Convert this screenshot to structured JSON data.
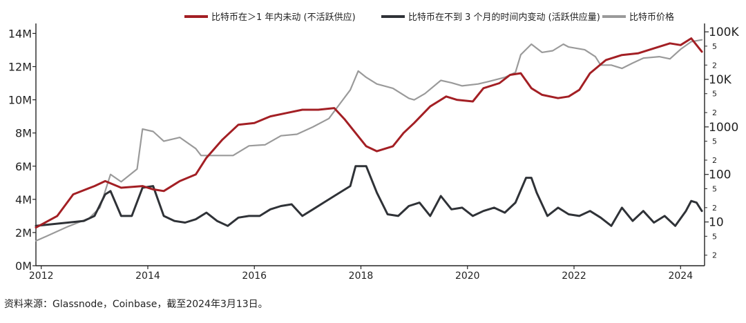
{
  "chart_data": {
    "type": "line",
    "source": "资料来源：Glassnode，Coinbase，截至2024年3月13日。",
    "legend_position": "top",
    "grid": false,
    "x_ticks": [
      "2012",
      "2014",
      "2016",
      "2018",
      "2020",
      "2022",
      "2024"
    ],
    "x_range": [
      2011.9,
      2024.45
    ],
    "y_left": {
      "ticks": [
        0,
        2,
        4,
        6,
        8,
        10,
        12,
        14
      ],
      "tick_labels": [
        "0M",
        "2M",
        "4M",
        "6M",
        "8M",
        "10M",
        "12M",
        "14M"
      ],
      "range": [
        0,
        14.6
      ],
      "unit": "M"
    },
    "y_right": {
      "scale": "log",
      "range": [
        1.2,
        150000
      ],
      "major_ticks": [
        10,
        100,
        1000,
        10000,
        100000
      ],
      "major_labels": [
        "10",
        "100",
        "1000",
        "10K",
        "100K"
      ],
      "minor_ticks": [
        2,
        5,
        20,
        50,
        200,
        500,
        2000,
        5000,
        20000,
        50000
      ],
      "minor_labels": [
        "2",
        "5",
        "2",
        "5",
        "2",
        "5",
        "2",
        "5",
        "2",
        "5"
      ]
    },
    "series": [
      {
        "name": "比特币在＞1 年内未动 (不活跃供应)",
        "axis": "left",
        "color": "#a31f24",
        "x": [
          2011.9,
          2012.3,
          2012.6,
          2013.0,
          2013.2,
          2013.5,
          2013.9,
          2014.1,
          2014.3,
          2014.6,
          2014.9,
          2015.1,
          2015.4,
          2015.7,
          2016.0,
          2016.3,
          2016.6,
          2016.9,
          2017.2,
          2017.5,
          2017.7,
          2017.9,
          2018.1,
          2018.3,
          2018.6,
          2018.8,
          2019.0,
          2019.3,
          2019.6,
          2019.8,
          2020.1,
          2020.3,
          2020.6,
          2020.8,
          2021.0,
          2021.2,
          2021.4,
          2021.7,
          2021.9,
          2022.1,
          2022.3,
          2022.6,
          2022.9,
          2023.2,
          2023.5,
          2023.8,
          2024.0,
          2024.2,
          2024.4
        ],
        "values": [
          2.3,
          3.0,
          4.3,
          4.8,
          5.1,
          4.7,
          4.8,
          4.6,
          4.5,
          5.1,
          5.5,
          6.5,
          7.6,
          8.5,
          8.6,
          9.0,
          9.2,
          9.4,
          9.4,
          9.5,
          8.8,
          8.0,
          7.2,
          6.9,
          7.2,
          8.0,
          8.6,
          9.6,
          10.2,
          10.0,
          9.9,
          10.7,
          11.0,
          11.5,
          11.6,
          10.7,
          10.3,
          10.1,
          10.2,
          10.6,
          11.6,
          12.4,
          12.7,
          12.8,
          13.1,
          13.4,
          13.3,
          13.7,
          12.9
        ]
      },
      {
        "name": "比特币在不到 3 个月的时间内变动 (活跃供应量)",
        "axis": "left",
        "color": "#2f3237",
        "x": [
          2011.9,
          2012.2,
          2012.5,
          2012.8,
          2013.0,
          2013.2,
          2013.3,
          2013.5,
          2013.7,
          2013.9,
          2014.1,
          2014.3,
          2014.5,
          2014.7,
          2014.9,
          2015.1,
          2015.3,
          2015.5,
          2015.7,
          2015.9,
          2016.1,
          2016.3,
          2016.5,
          2016.7,
          2016.9,
          2017.1,
          2017.3,
          2017.5,
          2017.7,
          2017.8,
          2017.9,
          2018.1,
          2018.3,
          2018.5,
          2018.7,
          2018.9,
          2019.1,
          2019.3,
          2019.5,
          2019.7,
          2019.9,
          2020.1,
          2020.3,
          2020.5,
          2020.7,
          2020.9,
          2021.1,
          2021.2,
          2021.3,
          2021.5,
          2021.7,
          2021.9,
          2022.1,
          2022.3,
          2022.5,
          2022.7,
          2022.9,
          2023.1,
          2023.3,
          2023.5,
          2023.7,
          2023.9,
          2024.1,
          2024.2,
          2024.3,
          2024.4
        ],
        "values": [
          2.4,
          2.5,
          2.6,
          2.7,
          3.0,
          4.3,
          4.5,
          3.0,
          3.0,
          4.7,
          4.8,
          3.0,
          2.7,
          2.6,
          2.8,
          3.2,
          2.7,
          2.4,
          2.9,
          3.0,
          3.0,
          3.4,
          3.6,
          3.7,
          3.0,
          3.4,
          3.8,
          4.2,
          4.6,
          4.8,
          6.0,
          6.0,
          4.4,
          3.1,
          3.0,
          3.6,
          3.8,
          3.0,
          4.2,
          3.4,
          3.5,
          3.0,
          3.3,
          3.5,
          3.2,
          3.8,
          5.3,
          5.3,
          4.4,
          3.0,
          3.5,
          3.1,
          3.0,
          3.3,
          2.9,
          2.4,
          3.5,
          2.7,
          3.3,
          2.6,
          3.0,
          2.4,
          3.3,
          3.9,
          3.8,
          3.3
        ]
      },
      {
        "name": "比特币价格",
        "axis": "right",
        "color": "#9a9a9a",
        "x": [
          2011.9,
          2012.1,
          2012.5,
          2012.9,
          2013.1,
          2013.3,
          2013.5,
          2013.8,
          2013.9,
          2014.1,
          2014.3,
          2014.6,
          2014.9,
          2015.0,
          2015.3,
          2015.6,
          2015.9,
          2016.2,
          2016.5,
          2016.8,
          2017.1,
          2017.4,
          2017.6,
          2017.8,
          2017.95,
          2018.1,
          2018.3,
          2018.6,
          2018.9,
          2019.0,
          2019.2,
          2019.5,
          2019.7,
          2019.9,
          2020.2,
          2020.4,
          2020.7,
          2020.9,
          2021.0,
          2021.2,
          2021.4,
          2021.6,
          2021.8,
          2021.9,
          2022.2,
          2022.4,
          2022.5,
          2022.7,
          2022.9,
          2023.1,
          2023.3,
          2023.6,
          2023.8,
          2024.0,
          2024.2,
          2024.4
        ],
        "values": [
          4,
          5,
          8,
          12,
          20,
          100,
          70,
          130,
          900,
          800,
          500,
          600,
          350,
          250,
          250,
          250,
          400,
          420,
          650,
          700,
          1000,
          1500,
          3000,
          6000,
          15000,
          11000,
          8000,
          6500,
          4000,
          3700,
          5000,
          9500,
          8500,
          7300,
          8000,
          9000,
          11000,
          14000,
          33000,
          55000,
          37000,
          40000,
          55000,
          48000,
          42000,
          30000,
          20000,
          20000,
          17000,
          22000,
          28000,
          30000,
          27000,
          43000,
          62000,
          68000
        ]
      }
    ]
  }
}
